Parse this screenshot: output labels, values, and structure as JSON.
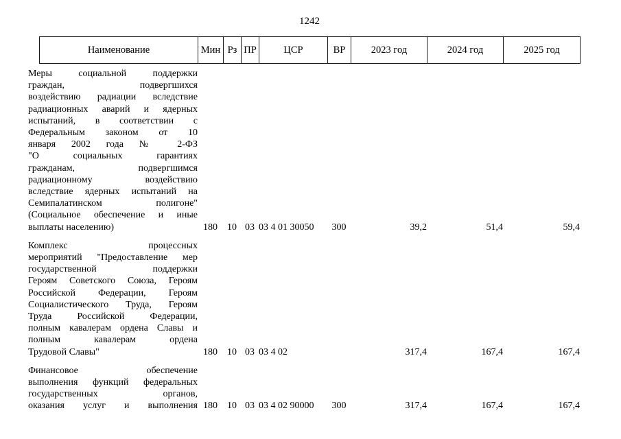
{
  "page": {
    "number": "1242"
  },
  "table": {
    "headers": {
      "name": "Наименование",
      "min": "Мин",
      "rz": "Рз",
      "pr": "ПР",
      "csr": "ЦСР",
      "vr": "ВР",
      "y2023": "2023 год",
      "y2024": "2024 год",
      "y2025": "2025 год"
    },
    "rows": [
      {
        "name_lines": [
          "Меры социальной поддержки",
          "граждан, подвергшихся",
          "воздействию радиации вследствие",
          "радиационных аварий и ядерных",
          "испытаний, в соответствии с",
          "Федеральным законом от 10",
          "января 2002 года № 2-ФЗ",
          "\"О социальных гарантиях",
          "гражданам, подвергшимся",
          "радиационному воздействию",
          "вследствие ядерных испытаний на",
          "Семипалатинском полигоне\"",
          "(Социальное обеспечение и иные",
          "выплаты населению)"
        ],
        "last_line_justified": false,
        "min": "180",
        "rz": "10",
        "pr": "03",
        "csr": "03 4 01 30050",
        "vr": "300",
        "y2023": "39,2",
        "y2024": "51,4",
        "y2025": "59,4"
      },
      {
        "name_lines": [
          "Комплекс процессных",
          "мероприятий \"Предоставление мер",
          "государственной поддержки",
          "Героям Советского Союза, Героям",
          "Российской Федерации, Героям",
          "Социалистического Труда, Героям",
          "Труда Российской Федерации,",
          "полным кавалерам ордена Славы и",
          "полным кавалерам ордена",
          "Трудовой Славы\""
        ],
        "last_line_justified": false,
        "min": "180",
        "rz": "10",
        "pr": "03",
        "csr": "03 4 02",
        "vr": "",
        "y2023": "317,4",
        "y2024": "167,4",
        "y2025": "167,4"
      },
      {
        "name_lines": [
          "Финансовое обеспечение",
          "выполнения функций федеральных",
          "государственных органов,",
          "оказания услуг и выполнения"
        ],
        "last_line_justified": true,
        "min": "180",
        "rz": "10",
        "pr": "03",
        "csr": "03 4 02 90000",
        "vr": "300",
        "y2023": "317,4",
        "y2024": "167,4",
        "y2025": "167,4"
      }
    ]
  }
}
